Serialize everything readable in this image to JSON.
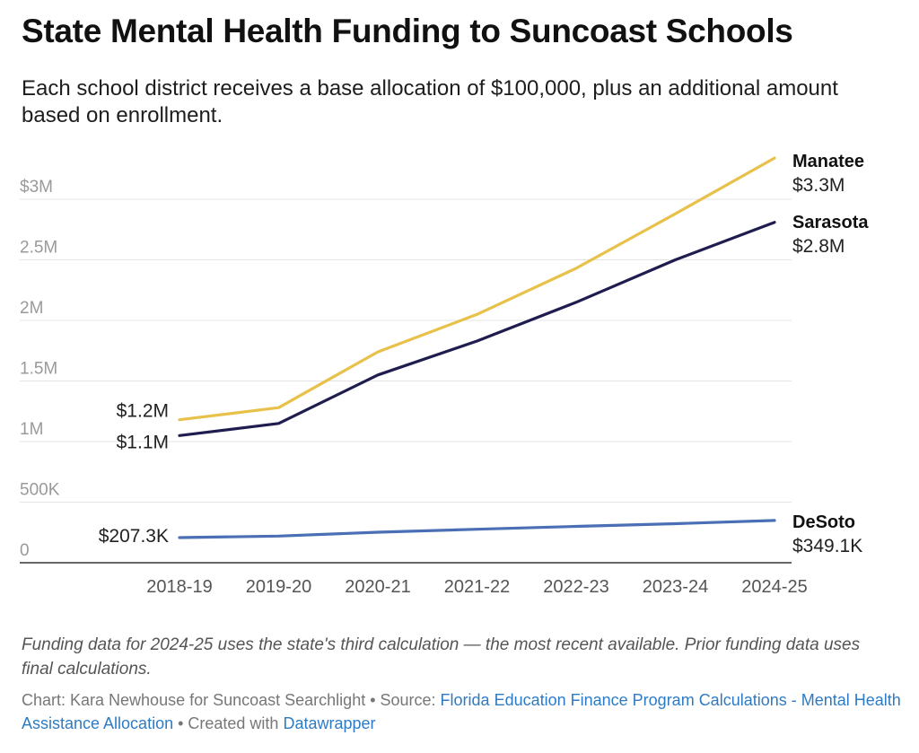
{
  "title": "State Mental Health Funding to Suncoast Schools",
  "subtitle": "Each school district receives a base allocation of $100,000, plus an additional amount based on enrollment.",
  "note": "Funding data for 2024-25 uses the state's third calculation — the most recent available. Prior funding data uses final calculations.",
  "credit": {
    "prefix": "Chart: Kara Newhouse for Suncoast Searchlight • Source: ",
    "source_link": "Florida Education Finance Program Calculations - Mental Health Assistance Allocation",
    "middle": " • Created with ",
    "tool_link": "Datawrapper"
  },
  "colors": {
    "manatee": "#e8c14a",
    "sarasota": "#1f1d4f",
    "desoto": "#4a6fb5",
    "grid": "#e4e4e4",
    "axis_text": "#9a9a9a"
  },
  "chart_data": {
    "type": "line",
    "categories": [
      "2018-19",
      "2019-20",
      "2020-21",
      "2021-22",
      "2022-23",
      "2023-24",
      "2024-25"
    ],
    "ylim": [
      0,
      3000000
    ],
    "yticks": [
      {
        "value": 0,
        "label": "0"
      },
      {
        "value": 500000,
        "label": "500K"
      },
      {
        "value": 1000000,
        "label": "1M"
      },
      {
        "value": 1500000,
        "label": "1.5M"
      },
      {
        "value": 2000000,
        "label": "2M"
      },
      {
        "value": 2500000,
        "label": "2.5M"
      },
      {
        "value": 3000000,
        "label": "$3M"
      }
    ],
    "grid": true,
    "series": [
      {
        "key": "manatee",
        "name": "Manatee",
        "values": [
          1180000,
          1280000,
          1740000,
          2050000,
          2430000,
          2880000,
          3340000
        ],
        "start_label": "$1.2M",
        "end_label": "$3.3M"
      },
      {
        "key": "sarasota",
        "name": "Sarasota",
        "values": [
          1050000,
          1150000,
          1550000,
          1830000,
          2150000,
          2500000,
          2810000
        ],
        "start_label": "$1.1M",
        "end_label": "$2.8M"
      },
      {
        "key": "desoto",
        "name": "DeSoto",
        "values": [
          207300,
          220000,
          252000,
          276000,
          300000,
          322000,
          349100
        ],
        "start_label": "$207.3K",
        "end_label": "$349.1K"
      }
    ]
  }
}
